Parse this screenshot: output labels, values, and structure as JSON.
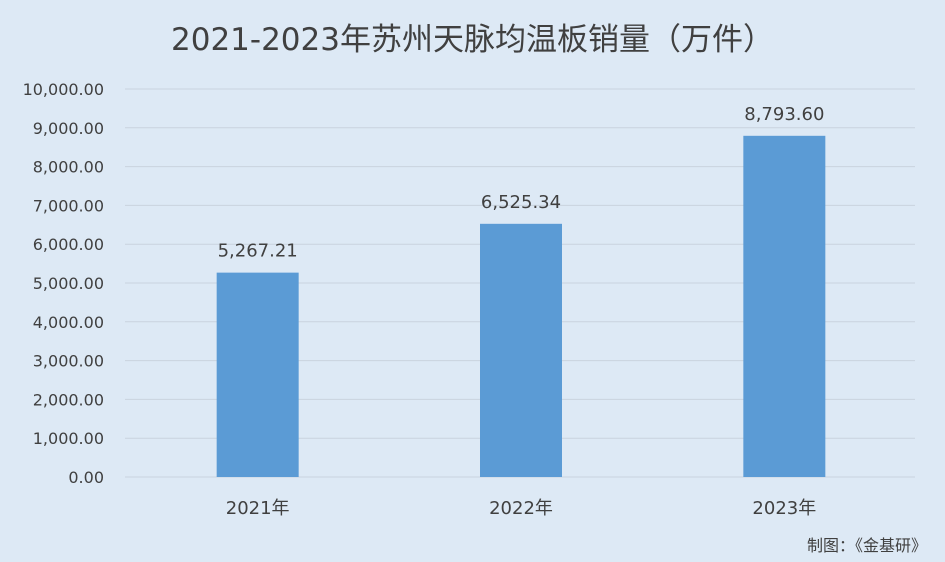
{
  "chart_data": {
    "type": "bar",
    "title": "2021-2023年苏州天脉均温板销量（万件）",
    "categories": [
      "2021年",
      "2022年",
      "2023年"
    ],
    "values": [
      5267.21,
      6525.34,
      8793.6
    ],
    "data_labels": [
      "5,267.21",
      "6,525.34",
      "8,793.60"
    ],
    "ylim": [
      0,
      10000
    ],
    "y_ticks": [
      {
        "value": 0,
        "label": "0.00"
      },
      {
        "value": 1000,
        "label": "1,000.00"
      },
      {
        "value": 2000,
        "label": "2,000.00"
      },
      {
        "value": 3000,
        "label": "3,000.00"
      },
      {
        "value": 4000,
        "label": "4,000.00"
      },
      {
        "value": 5000,
        "label": "5,000.00"
      },
      {
        "value": 6000,
        "label": "6,000.00"
      },
      {
        "value": 7000,
        "label": "7,000.00"
      },
      {
        "value": 8000,
        "label": "8,000.00"
      },
      {
        "value": 9000,
        "label": "9,000.00"
      },
      {
        "value": 10000,
        "label": "10,000.00"
      }
    ],
    "grid": true,
    "legend": "none",
    "bar_color": "#5b9bd5",
    "background_color": "#dde9f5"
  },
  "credit": "制图：《金基研》"
}
